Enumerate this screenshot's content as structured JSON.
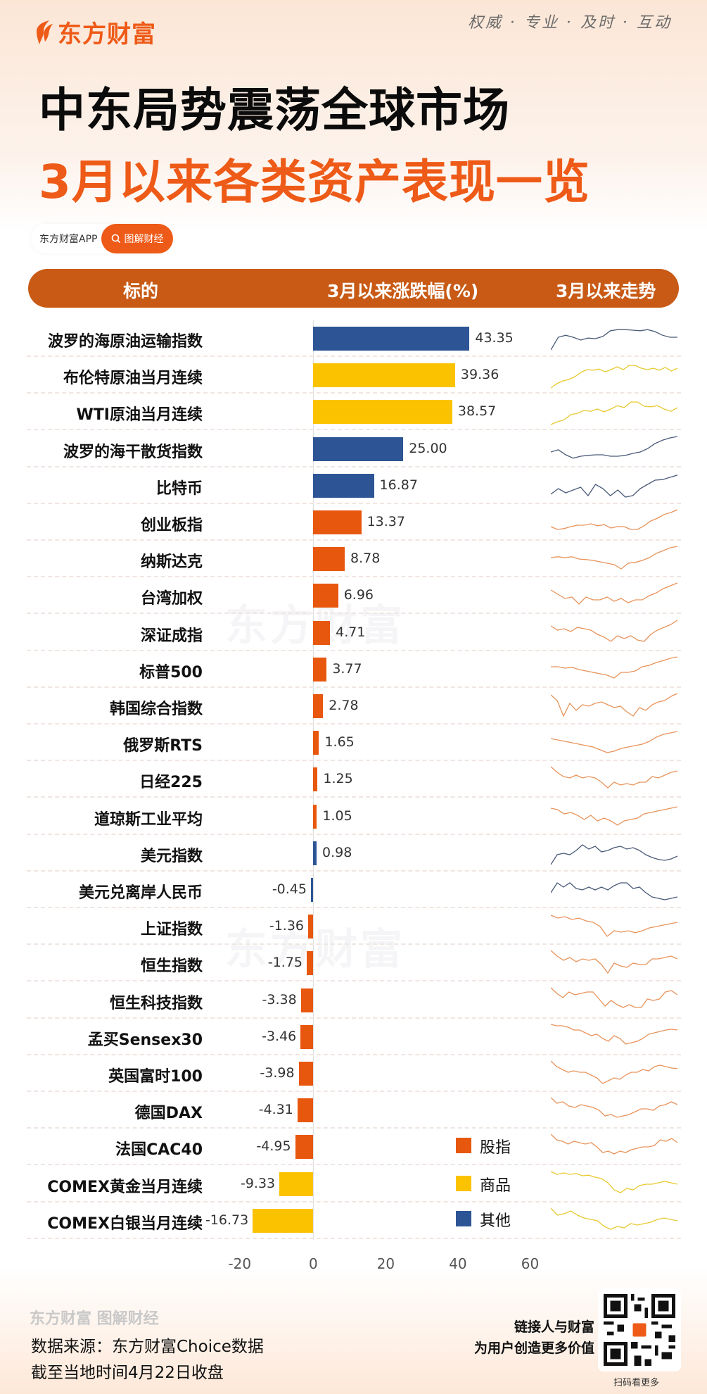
{
  "brand": {
    "logo_text": "东方财富",
    "slogan": "权威 · 专业 · 及时 · 互动"
  },
  "title": {
    "line1": "中东局势震荡全球市场",
    "line2": "3月以来各类资产表现一览"
  },
  "tag": {
    "app_label": "东方财富APP",
    "search_label": "图解财经"
  },
  "header": {
    "col1": "标的",
    "col2": "3月以来涨跌幅(%)",
    "col3": "3月以来走势"
  },
  "colors": {
    "stock_index": "#e8570e",
    "commodity": "#fbc200",
    "other": "#2d5596",
    "brand": "#ee5a17",
    "header_bar": "#c85a15"
  },
  "legend": [
    {
      "label": "股指",
      "color": "#e8570e"
    },
    {
      "label": "商品",
      "color": "#fbc200"
    },
    {
      "label": "其他",
      "color": "#2d5596"
    }
  ],
  "chart_data": {
    "type": "bar",
    "orientation": "horizontal",
    "title": "3月以来各类资产表现一览",
    "xlabel": "3月以来涨跌幅(%)",
    "ylabel": "标的",
    "xlim": [
      -20,
      60
    ],
    "xticks": [
      "-20",
      "0",
      "20",
      "40",
      "60"
    ],
    "grid": false,
    "legend_position": "right-bottom",
    "categories": [
      "波罗的海原油运输指数",
      "布伦特原油当月连续",
      "WTI原油当月连续",
      "波罗的海干散货指数",
      "比特币",
      "创业板指",
      "纳斯达克",
      "台湾加权",
      "深证成指",
      "标普500",
      "韩国综合指数",
      "俄罗斯RTS",
      "日经225",
      "道琼斯工业平均",
      "美元指数",
      "美元兑离岸人民币",
      "上证指数",
      "恒生指数",
      "恒生科技指数",
      "孟买Sensex30",
      "英国富时100",
      "德国DAX",
      "法国CAC40",
      "COMEX黄金当月连续",
      "COMEX白银当月连续"
    ],
    "values": [
      43.35,
      39.36,
      38.57,
      25.0,
      16.87,
      13.37,
      8.78,
      6.96,
      4.71,
      3.77,
      2.78,
      1.65,
      1.25,
      1.05,
      0.98,
      -0.45,
      -1.36,
      -1.75,
      -3.38,
      -3.46,
      -3.98,
      -4.31,
      -4.95,
      -9.33,
      -16.73
    ],
    "labels": [
      "43.35",
      "39.36",
      "38.57",
      "25.00",
      "16.87",
      "13.37",
      "8.78",
      "6.96",
      "4.71",
      "3.77",
      "2.78",
      "1.65",
      "1.25",
      "1.05",
      "0.98",
      "-0.45",
      "-1.36",
      "-1.75",
      "-3.38",
      "-3.46",
      "-3.98",
      "-4.31",
      "-4.95",
      "-9.33",
      "-16.73"
    ],
    "groups": [
      "其他",
      "商品",
      "商品",
      "其他",
      "其他",
      "股指",
      "股指",
      "股指",
      "股指",
      "股指",
      "股指",
      "股指",
      "股指",
      "股指",
      "其他",
      "其他",
      "股指",
      "股指",
      "股指",
      "股指",
      "股指",
      "股指",
      "股指",
      "商品",
      "商品"
    ]
  },
  "rows": [
    {
      "name": "波罗的海原油运输指数",
      "value": "43.35",
      "group": "other",
      "spark": [
        10,
        55,
        62,
        55,
        45,
        52,
        50,
        58,
        78,
        82,
        82,
        80,
        78,
        82,
        75,
        62,
        55,
        55
      ]
    },
    {
      "name": "布伦特原油当月连续",
      "value": "39.36",
      "group": "commodity",
      "spark": [
        5,
        20,
        30,
        35,
        45,
        60,
        70,
        68,
        72,
        62,
        70,
        80,
        70,
        85,
        85,
        75,
        70,
        75,
        68,
        78,
        65,
        75
      ]
    },
    {
      "name": "WTI原油当月连续",
      "value": "38.57",
      "group": "commodity",
      "spark": [
        5,
        15,
        22,
        40,
        45,
        55,
        52,
        60,
        50,
        60,
        72,
        65,
        85,
        85,
        70,
        68,
        72,
        60,
        52,
        65
      ]
    },
    {
      "name": "波罗的海干散货指数",
      "value": "25.00",
      "group": "other",
      "spark": [
        40,
        48,
        30,
        18,
        25,
        28,
        30,
        30,
        25,
        25,
        28,
        35,
        40,
        52,
        70,
        82,
        90,
        95
      ]
    },
    {
      "name": "比特币",
      "value": "16.87",
      "group": "other",
      "spark": [
        20,
        40,
        25,
        35,
        45,
        15,
        55,
        40,
        15,
        35,
        10,
        15,
        40,
        55,
        70,
        72,
        80,
        88
      ]
    },
    {
      "name": "创业板指",
      "value": "13.37",
      "group": "stock",
      "spark": [
        35,
        25,
        28,
        35,
        40,
        40,
        45,
        38,
        42,
        30,
        35,
        35,
        25,
        25,
        38,
        55,
        65,
        78,
        85,
        95
      ]
    },
    {
      "name": "纳斯达克",
      "value": "8.78",
      "group": "stock",
      "spark": [
        55,
        58,
        55,
        58,
        50,
        48,
        45,
        40,
        35,
        30,
        15,
        35,
        38,
        45,
        55,
        70,
        80,
        90,
        95
      ]
    },
    {
      "name": "台湾加权",
      "value": "6.96",
      "group": "stock",
      "spark": [
        70,
        55,
        40,
        45,
        20,
        45,
        35,
        35,
        45,
        30,
        40,
        25,
        35,
        35,
        50,
        60,
        75,
        85,
        95
      ]
    },
    {
      "name": "深证成指",
      "value": "4.71",
      "group": "stock",
      "spark": [
        75,
        60,
        65,
        55,
        70,
        65,
        60,
        45,
        35,
        20,
        40,
        30,
        40,
        25,
        20,
        45,
        60,
        70,
        80,
        95
      ]
    },
    {
      "name": "标普500",
      "value": "3.77",
      "group": "stock",
      "spark": [
        60,
        60,
        55,
        58,
        50,
        45,
        40,
        35,
        30,
        20,
        40,
        40,
        45,
        60,
        65,
        75,
        82,
        90,
        95
      ]
    },
    {
      "name": "韩国综合指数",
      "value": "2.78",
      "group": "stock",
      "spark": [
        90,
        70,
        15,
        60,
        35,
        55,
        50,
        60,
        65,
        55,
        45,
        50,
        30,
        15,
        45,
        35,
        55,
        65,
        70,
        85,
        95
      ]
    },
    {
      "name": "俄罗斯RTS",
      "value": "1.65",
      "group": "stock",
      "spark": [
        65,
        60,
        55,
        50,
        45,
        40,
        35,
        25,
        15,
        20,
        30,
        35,
        40,
        45,
        55,
        70,
        80,
        85,
        90
      ]
    },
    {
      "name": "日经225",
      "value": "1.25",
      "group": "stock",
      "spark": [
        95,
        75,
        60,
        55,
        65,
        55,
        60,
        55,
        40,
        20,
        40,
        30,
        35,
        30,
        40,
        40,
        60,
        55,
        65,
        75,
        80
      ]
    },
    {
      "name": "道琼斯工业平均",
      "value": "1.05",
      "group": "stock",
      "spark": [
        80,
        75,
        60,
        65,
        55,
        40,
        55,
        35,
        45,
        35,
        20,
        35,
        40,
        45,
        60,
        65,
        70,
        75,
        80,
        85
      ]
    },
    {
      "name": "美元指数",
      "value": "0.98",
      "group": "other",
      "spark": [
        10,
        45,
        50,
        45,
        60,
        80,
        65,
        75,
        55,
        60,
        70,
        75,
        65,
        70,
        60,
        45,
        35,
        28,
        25,
        30,
        40
      ]
    },
    {
      "name": "美元兑离岸人民币",
      "value": "-0.45",
      "group": "other",
      "spark": [
        40,
        75,
        60,
        75,
        55,
        50,
        60,
        50,
        60,
        50,
        65,
        75,
        75,
        55,
        60,
        40,
        25,
        20,
        15,
        20,
        25
      ]
    },
    {
      "name": "上证指数",
      "value": "-1.36",
      "group": "stock",
      "spark": [
        90,
        80,
        85,
        75,
        80,
        70,
        65,
        50,
        15,
        35,
        30,
        35,
        28,
        35,
        45,
        50,
        55,
        60,
        65
      ]
    },
    {
      "name": "恒生指数",
      "value": "-1.75",
      "group": "stock",
      "spark": [
        95,
        75,
        60,
        70,
        55,
        65,
        60,
        65,
        45,
        15,
        50,
        40,
        35,
        50,
        45,
        45,
        65,
        65,
        70,
        75,
        65
      ]
    },
    {
      "name": "恒生科技指数",
      "value": "-3.38",
      "group": "stock",
      "spark": [
        95,
        75,
        60,
        80,
        70,
        75,
        80,
        80,
        55,
        30,
        50,
        35,
        25,
        35,
        25,
        25,
        55,
        50,
        55,
        80,
        85,
        70
      ]
    },
    {
      "name": "孟买Sensex30",
      "value": "-3.46",
      "group": "stock",
      "spark": [
        95,
        90,
        90,
        85,
        75,
        75,
        65,
        55,
        60,
        45,
        35,
        55,
        45,
        25,
        30,
        35,
        45,
        60,
        65,
        70,
        75,
        78,
        75
      ]
    },
    {
      "name": "英国富时100",
      "value": "-3.98",
      "group": "stock",
      "spark": [
        95,
        75,
        65,
        55,
        60,
        55,
        55,
        45,
        35,
        15,
        25,
        35,
        30,
        45,
        55,
        55,
        65,
        60,
        75,
        80,
        75,
        70,
        68
      ]
    },
    {
      "name": "德国DAX",
      "value": "-4.31",
      "group": "stock",
      "spark": [
        95,
        75,
        80,
        65,
        60,
        70,
        65,
        60,
        50,
        30,
        35,
        25,
        30,
        35,
        45,
        55,
        55,
        50,
        65,
        70,
        80,
        70
      ]
    },
    {
      "name": "法国CAC40",
      "value": "-4.95",
      "group": "stock",
      "spark": [
        95,
        75,
        70,
        60,
        70,
        65,
        60,
        65,
        50,
        30,
        35,
        25,
        35,
        30,
        40,
        45,
        50,
        50,
        55,
        75,
        70,
        80,
        65
      ]
    },
    {
      "name": "COMEX黄金当月连续",
      "value": "-9.33",
      "group": "commodity",
      "spark": [
        95,
        85,
        90,
        85,
        88,
        80,
        82,
        75,
        70,
        55,
        30,
        20,
        35,
        30,
        45,
        50,
        50,
        55,
        60,
        55,
        50
      ]
    },
    {
      "name": "COMEX白银当月连续",
      "value": "-16.73",
      "group": "commodity",
      "spark": [
        95,
        70,
        75,
        85,
        70,
        60,
        55,
        50,
        30,
        20,
        30,
        25,
        40,
        35,
        40,
        45,
        55,
        60,
        55,
        50
      ]
    }
  ],
  "axis": {
    "ticks": [
      {
        "label": "-20",
        "value": -20
      },
      {
        "label": "0",
        "value": 0
      },
      {
        "label": "20",
        "value": 20
      },
      {
        "label": "40",
        "value": 40
      },
      {
        "label": "60",
        "value": 60
      }
    ]
  },
  "watermark": "东方财富",
  "footer": {
    "logo_text": "东方财富 图解财经",
    "source": "数据来源：东方财富Choice数据",
    "date_note": "截至当地时间4月22日收盘",
    "slogan_line1": "链接人与财富",
    "slogan_line2": "为用户创造更多价值",
    "qr_caption": "扫码看更多"
  }
}
